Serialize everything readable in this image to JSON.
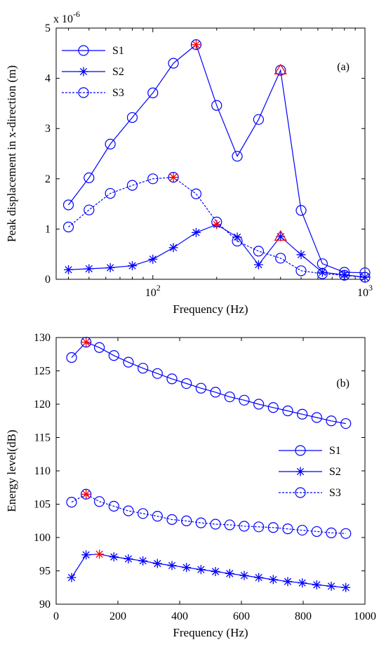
{
  "chart_data": [
    {
      "type": "line",
      "panel_label": "(a)",
      "xlabel": "Frequency (Hz)",
      "ylabel": "Peak displacement in x-direction (m)",
      "xscale": "log",
      "xlim": [
        35,
        1000
      ],
      "ylim": [
        0,
        5
      ],
      "ytick_multiplier": "x 10",
      "ytick_exponent": "-6",
      "x_ticklabels": [
        {
          "base": "10",
          "exp": "2",
          "value": 100
        },
        {
          "base": "10",
          "exp": "3",
          "value": 1000
        }
      ],
      "y_ticks": [
        0,
        1,
        2,
        3,
        4,
        5
      ],
      "legend_position": "top-left",
      "x": [
        40,
        50,
        63,
        80,
        100,
        125,
        160,
        200,
        250,
        315,
        400,
        500,
        630,
        800,
        1000
      ],
      "series": [
        {
          "name": "S1",
          "line": "solid",
          "marker": "circle",
          "color": "#0000ff",
          "values": [
            1.48,
            2.02,
            2.69,
            3.22,
            3.71,
            4.3,
            4.67,
            3.46,
            2.45,
            3.18,
            4.16,
            1.37,
            0.31,
            0.14,
            0.13
          ],
          "highlights": [
            {
              "index": 6,
              "marker": "star",
              "color": "#ff0000"
            },
            {
              "index": 10,
              "marker": "triangle",
              "color": "#ff0000"
            }
          ]
        },
        {
          "name": "S2",
          "line": "solid",
          "marker": "star",
          "color": "#0000ff",
          "values": [
            0.19,
            0.21,
            0.23,
            0.27,
            0.4,
            0.63,
            0.93,
            1.09,
            0.84,
            0.29,
            0.85,
            0.49,
            0.14,
            0.09,
            0.04
          ],
          "highlights": [
            {
              "index": 7,
              "marker": "star",
              "color": "#ff0000"
            },
            {
              "index": 10,
              "marker": "triangle",
              "color": "#ff0000"
            }
          ]
        },
        {
          "name": "S3",
          "line": "dashed",
          "marker": "circle",
          "color": "#0000ff",
          "values": [
            1.04,
            1.38,
            1.71,
            1.87,
            2.0,
            2.03,
            1.7,
            1.14,
            0.76,
            0.56,
            0.42,
            0.17,
            0.11,
            0.08,
            0.04
          ],
          "highlights": [
            {
              "index": 5,
              "marker": "star",
              "color": "#ff0000"
            }
          ]
        }
      ]
    },
    {
      "type": "line",
      "panel_label": "(b)",
      "xlabel": "Frequency (Hz)",
      "ylabel": "Energy level(dB)",
      "xscale": "linear",
      "xlim": [
        0,
        1000
      ],
      "ylim": [
        90,
        130
      ],
      "x_ticks": [
        0,
        200,
        400,
        600,
        800,
        1000
      ],
      "y_ticks": [
        90,
        95,
        100,
        105,
        110,
        115,
        120,
        125,
        130
      ],
      "legend_position": "right",
      "x": [
        50,
        97,
        140,
        187,
        234,
        281,
        328,
        375,
        422,
        469,
        516,
        562,
        609,
        656,
        703,
        750,
        797,
        844,
        891,
        938
      ],
      "series": [
        {
          "name": "S1",
          "line": "solid",
          "marker": "circle",
          "color": "#0000ff",
          "values": [
            127.0,
            129.3,
            128.5,
            127.3,
            126.3,
            125.4,
            124.6,
            123.8,
            123.1,
            122.4,
            121.8,
            121.1,
            120.6,
            120.0,
            119.5,
            119.0,
            118.5,
            118.0,
            117.5,
            117.1
          ],
          "highlights": [
            {
              "index": 1,
              "marker": "star",
              "color": "#ff0000"
            }
          ]
        },
        {
          "name": "S2",
          "line": "solid",
          "marker": "star",
          "color": "#0000ff",
          "values": [
            94.0,
            97.4,
            97.5,
            97.1,
            96.8,
            96.5,
            96.1,
            95.8,
            95.5,
            95.2,
            94.9,
            94.6,
            94.3,
            94.0,
            93.7,
            93.4,
            93.2,
            92.9,
            92.7,
            92.5
          ],
          "highlights": [
            {
              "index": 2,
              "marker": "star",
              "color": "#ff0000"
            }
          ]
        },
        {
          "name": "S3",
          "line": "dashed",
          "marker": "circle",
          "color": "#0000ff",
          "values": [
            105.3,
            106.5,
            105.4,
            104.7,
            104.0,
            103.6,
            103.2,
            102.7,
            102.5,
            102.2,
            102.0,
            101.9,
            101.7,
            101.6,
            101.5,
            101.3,
            101.1,
            100.9,
            100.7,
            100.6
          ],
          "highlights": [
            {
              "index": 1,
              "marker": "star",
              "color": "#ff0000"
            }
          ]
        }
      ]
    }
  ]
}
